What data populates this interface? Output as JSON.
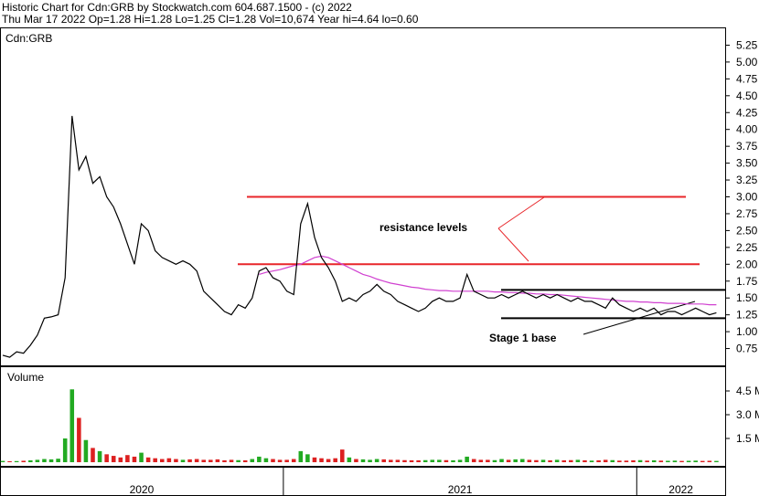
{
  "chart_data": [
    {
      "type": "line",
      "title": "Historic Chart for Cdn:GRB by Stockwatch.com 604.687.1500 - (c) 2022",
      "subtitle": "Thu Mar 17 2022  Op=1.28  Hi=1.28  Lo=1.25  Cl=1.28  Vol=10,674  Year hi=4.64  lo=0.60",
      "label": "Cdn:GRB",
      "ylim": [
        0.5,
        5.5
      ],
      "yticks": [
        0.75,
        {
          "value": 1,
          "label": "1.00"
        },
        1.25,
        {
          "value": 1.5,
          "label": "1.50"
        },
        1.75,
        {
          "value": 2,
          "label": "2.00"
        },
        2.25,
        {
          "value": 2.5,
          "label": "2.50"
        },
        2.75,
        {
          "value": 3,
          "label": "3.00"
        },
        3.25,
        {
          "value": 3.5,
          "label": "3.50"
        },
        3.75,
        {
          "value": 4,
          "label": "4.00"
        },
        4.25,
        {
          "value": 4.5,
          "label": "4.50"
        },
        4.75,
        {
          "value": 5,
          "label": "5.00"
        },
        5.25
      ],
      "series": [
        {
          "color": "#000000",
          "values": [
            0.65,
            0.62,
            0.7,
            0.68,
            0.8,
            0.95,
            1.2,
            1.22,
            1.25,
            1.8,
            4.2,
            3.4,
            3.6,
            3.2,
            3.3,
            3.0,
            2.85,
            2.6,
            2.3,
            2.0,
            2.6,
            2.5,
            2.2,
            2.1,
            2.05,
            2.0,
            2.05,
            2.0,
            1.9,
            1.6,
            1.5,
            1.4,
            1.3,
            1.25,
            1.4,
            1.35,
            1.5,
            1.9,
            1.95,
            1.8,
            1.75,
            1.6,
            1.55,
            2.6,
            2.9,
            2.4,
            2.1,
            1.95,
            1.75,
            1.45,
            1.5,
            1.45,
            1.55,
            1.6,
            1.7,
            1.6,
            1.55,
            1.45,
            1.4,
            1.35,
            1.3,
            1.35,
            1.45,
            1.5,
            1.45,
            1.45,
            1.5,
            1.85,
            1.6,
            1.55,
            1.5,
            1.5,
            1.55,
            1.5,
            1.55,
            1.6,
            1.55,
            1.5,
            1.55,
            1.5,
            1.55,
            1.5,
            1.45,
            1.5,
            1.45,
            1.45,
            1.4,
            1.35,
            1.5,
            1.4,
            1.35,
            1.3,
            1.35,
            1.3,
            1.35,
            1.25,
            1.3,
            1.3,
            1.25,
            1.3,
            1.35,
            1.3,
            1.25,
            1.28
          ]
        },
        {
          "color": "#d040d0",
          "values": [
            null,
            null,
            null,
            null,
            null,
            null,
            null,
            null,
            null,
            null,
            null,
            null,
            null,
            null,
            null,
            null,
            null,
            null,
            null,
            null,
            null,
            null,
            null,
            null,
            null,
            null,
            null,
            null,
            null,
            null,
            null,
            null,
            null,
            null,
            null,
            null,
            null,
            1.85,
            1.88,
            1.9,
            1.92,
            1.95,
            1.98,
            2.0,
            2.05,
            2.1,
            2.12,
            2.1,
            2.05,
            2.0,
            1.95,
            1.9,
            1.85,
            1.82,
            1.78,
            1.75,
            1.72,
            1.7,
            1.68,
            1.66,
            1.65,
            1.63,
            1.62,
            1.61,
            1.61,
            1.6,
            1.6,
            1.6,
            1.6,
            1.6,
            1.6,
            1.59,
            1.59,
            1.58,
            1.58,
            1.57,
            1.57,
            1.56,
            1.56,
            1.55,
            1.55,
            1.54,
            1.53,
            1.52,
            1.51,
            1.5,
            1.49,
            1.48,
            1.47,
            1.46,
            1.45,
            1.45,
            1.44,
            1.44,
            1.43,
            1.43,
            1.42,
            1.42,
            1.42,
            1.41,
            1.41,
            1.41,
            1.4,
            1.4
          ]
        }
      ],
      "reference_lines": [
        {
          "value": 3.0,
          "color": "#e8262a"
        },
        {
          "value": 2.0,
          "color": "#e8262a"
        },
        {
          "value": 1.62,
          "color": "#000000"
        },
        {
          "value": 1.2,
          "color": "#000000"
        }
      ],
      "annotations": [
        {
          "text": "resistance levels",
          "color": "#e8262a"
        },
        {
          "text": "Stage 1 base",
          "color": "#000000"
        }
      ]
    },
    {
      "type": "bar",
      "title": "Volume",
      "up_color": "#22aa22",
      "down_color": "#dd2020",
      "ylim": [
        0,
        6000000
      ],
      "yticks": [
        {
          "value": 1500000,
          "label": "1.5 M"
        },
        {
          "value": 3000000,
          "label": "3.0 M"
        },
        {
          "value": 4500000,
          "label": "4.5 M"
        }
      ],
      "categories": [
        "2020",
        null,
        null,
        null,
        null,
        null,
        null,
        null,
        null,
        null,
        null,
        null,
        null,
        null,
        null,
        null,
        null,
        null,
        null,
        null,
        null,
        null,
        null,
        null,
        null,
        null,
        null,
        null,
        null,
        null,
        null,
        null,
        null,
        null,
        null,
        null,
        null,
        null,
        null,
        null,
        null,
        "2021",
        null,
        null,
        null,
        null,
        null,
        null,
        null,
        null,
        null,
        null,
        null,
        null,
        null,
        null,
        null,
        null,
        null,
        null,
        null,
        null,
        null,
        null,
        null,
        null,
        null,
        null,
        null,
        null,
        null,
        null,
        null,
        null,
        null,
        null,
        null,
        null,
        null,
        null,
        null,
        null,
        null,
        null,
        null,
        null,
        null,
        null,
        null,
        null,
        null,
        null,
        "2022",
        null,
        null,
        null,
        null,
        null,
        null,
        null,
        null,
        null,
        null,
        null
      ],
      "values": [
        80000,
        60000,
        70000,
        90000,
        120000,
        150000,
        200000,
        180000,
        220000,
        1500000,
        4600000,
        2800000,
        1400000,
        900000,
        700000,
        500000,
        400000,
        300000,
        450000,
        350000,
        600000,
        300000,
        250000,
        200000,
        250000,
        200000,
        150000,
        180000,
        200000,
        150000,
        150000,
        180000,
        120000,
        150000,
        130000,
        120000,
        200000,
        350000,
        250000,
        200000,
        150000,
        150000,
        200000,
        700000,
        500000,
        300000,
        250000,
        200000,
        250000,
        800000,
        300000,
        200000,
        180000,
        150000,
        200000,
        180000,
        150000,
        150000,
        130000,
        120000,
        120000,
        130000,
        150000,
        150000,
        130000,
        120000,
        150000,
        350000,
        200000,
        150000,
        150000,
        130000,
        200000,
        150000,
        180000,
        200000,
        150000,
        130000,
        150000,
        120000,
        150000,
        120000,
        130000,
        150000,
        120000,
        100000,
        120000,
        150000,
        130000,
        100000,
        100000,
        120000,
        130000,
        100000,
        120000,
        100000,
        90000,
        100000,
        80000,
        90000,
        100000,
        80000,
        90000,
        80000
      ]
    }
  ]
}
